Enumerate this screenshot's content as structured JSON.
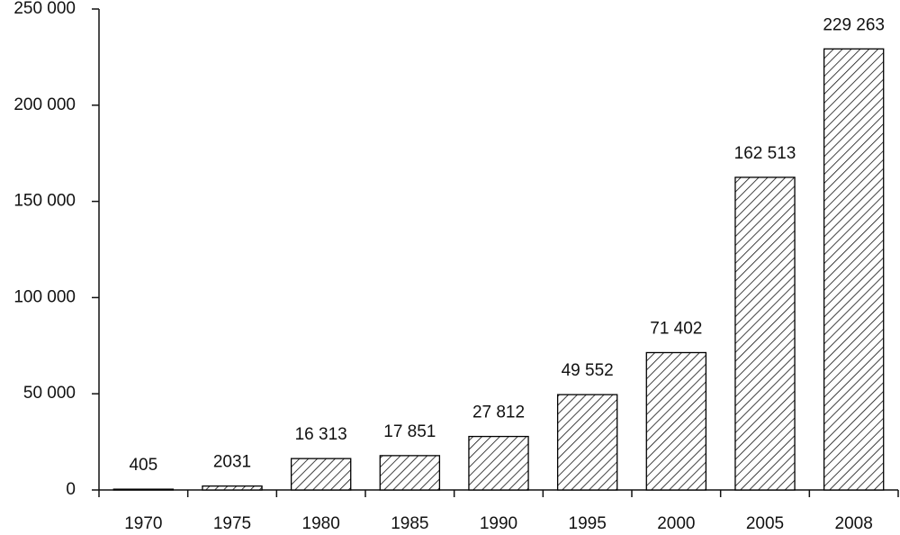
{
  "chart_data": {
    "type": "bar",
    "categories": [
      "1970",
      "1975",
      "1980",
      "1985",
      "1990",
      "1995",
      "2000",
      "2005",
      "2008"
    ],
    "values": [
      405,
      2031,
      16313,
      17851,
      27812,
      49552,
      71402,
      162513,
      229263
    ],
    "value_labels": [
      "405",
      "2031",
      "16 313",
      "17 851",
      "27 812",
      "49 552",
      "71 402",
      "162 513",
      "229 263"
    ],
    "color": "#000000",
    "ylim": [
      0,
      250000
    ],
    "yticks": [
      0,
      {
        "value": 50000,
        "label": "50 000"
      },
      {
        "value": 100000,
        "label": "100 000"
      },
      {
        "value": 150000,
        "label": "150 000"
      },
      {
        "value": 200000,
        "label": "200 000"
      },
      {
        "value": 250000,
        "label": "250 000"
      }
    ],
    "grid": false
  }
}
